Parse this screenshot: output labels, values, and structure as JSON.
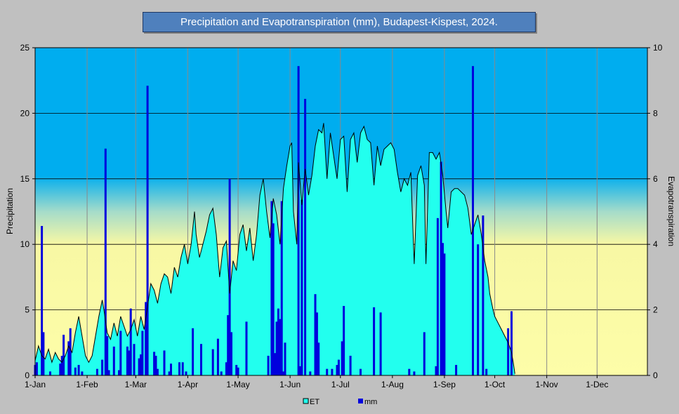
{
  "chart_data": {
    "type": "bar+area",
    "title": "Precipitation and Evapotranspiration (mm), Budapest-Kispest, 2024.",
    "ylabel_left": "Precipitation",
    "ylabel_right": "Evapotranspiration",
    "ylim_left": [
      0,
      25
    ],
    "ylim_right": [
      0,
      10
    ],
    "yticks_left": [
      "0",
      "5",
      "10",
      "15",
      "20",
      "25"
    ],
    "yticks_right": [
      "0",
      "2",
      "4",
      "6",
      "8",
      "10"
    ],
    "xlim_day": [
      1,
      366
    ],
    "xticks": [
      {
        "label": "1-Jan",
        "day": 1
      },
      {
        "label": "1-Feb",
        "day": 32
      },
      {
        "label": "1-Mar",
        "day": 61
      },
      {
        "label": "1-Apr",
        "day": 92
      },
      {
        "label": "1-May",
        "day": 122
      },
      {
        "label": "1-Jun",
        "day": 153
      },
      {
        "label": "1-Jul",
        "day": 183
      },
      {
        "label": "1-Aug",
        "day": 214
      },
      {
        "label": "1-Sep",
        "day": 245
      },
      {
        "label": "1-Oct",
        "day": 275
      },
      {
        "label": "1-Nov",
        "day": 306
      },
      {
        "label": "1-Dec",
        "day": 336
      }
    ],
    "legend": [
      "ET",
      "mm"
    ],
    "legend_position": "bottom",
    "colors": {
      "et_fill": "#22ffee",
      "precip": "#0000dd",
      "et_line": "#000000"
    },
    "et_series": {
      "name": "ET",
      "axis": "right",
      "points": [
        [
          1,
          0.45
        ],
        [
          3,
          0.9
        ],
        [
          5,
          0.6
        ],
        [
          7,
          0.5
        ],
        [
          9,
          0.8
        ],
        [
          11,
          0.4
        ],
        [
          13,
          0.7
        ],
        [
          15,
          0.5
        ],
        [
          17,
          0.4
        ],
        [
          19,
          0.6
        ],
        [
          21,
          0.9
        ],
        [
          23,
          0.7
        ],
        [
          25,
          1.3
        ],
        [
          27,
          1.8
        ],
        [
          29,
          1.2
        ],
        [
          31,
          0.6
        ],
        [
          33,
          0.4
        ],
        [
          35,
          0.6
        ],
        [
          37,
          1.2
        ],
        [
          39,
          1.8
        ],
        [
          41,
          2.3
        ],
        [
          42,
          2.0
        ],
        [
          44,
          1.3
        ],
        [
          46,
          1.1
        ],
        [
          48,
          1.6
        ],
        [
          50,
          1.2
        ],
        [
          52,
          1.8
        ],
        [
          54,
          1.5
        ],
        [
          56,
          1.2
        ],
        [
          58,
          1.4
        ],
        [
          60,
          1.7
        ],
        [
          62,
          1.2
        ],
        [
          64,
          1.8
        ],
        [
          66,
          1.4
        ],
        [
          68,
          2.1
        ],
        [
          70,
          2.8
        ],
        [
          72,
          2.6
        ],
        [
          74,
          2.2
        ],
        [
          76,
          2.8
        ],
        [
          78,
          3.1
        ],
        [
          80,
          3.0
        ],
        [
          82,
          2.5
        ],
        [
          84,
          3.3
        ],
        [
          86,
          3.0
        ],
        [
          88,
          3.6
        ],
        [
          90,
          4.0
        ],
        [
          92,
          3.4
        ],
        [
          94,
          4.0
        ],
        [
          96,
          5.0
        ],
        [
          97,
          4.3
        ],
        [
          99,
          3.6
        ],
        [
          101,
          4.0
        ],
        [
          103,
          4.4
        ],
        [
          105,
          4.9
        ],
        [
          107,
          5.1
        ],
        [
          109,
          4.3
        ],
        [
          111,
          3.0
        ],
        [
          113,
          3.9
        ],
        [
          115,
          4.1
        ],
        [
          117,
          2.5
        ],
        [
          119,
          3.5
        ],
        [
          121,
          3.2
        ],
        [
          123,
          4.3
        ],
        [
          125,
          4.6
        ],
        [
          127,
          3.8
        ],
        [
          129,
          4.5
        ],
        [
          131,
          3.5
        ],
        [
          133,
          4.3
        ],
        [
          135,
          5.5
        ],
        [
          137,
          6.0
        ],
        [
          139,
          5.0
        ],
        [
          141,
          4.2
        ],
        [
          143,
          5.4
        ],
        [
          145,
          4.9
        ],
        [
          147,
          4.0
        ],
        [
          149,
          5.7
        ],
        [
          151,
          6.4
        ],
        [
          153,
          7.0
        ],
        [
          154,
          7.1
        ],
        [
          155,
          5.0
        ],
        [
          157,
          4.0
        ],
        [
          158,
          6.5
        ],
        [
          160,
          5.2
        ],
        [
          162,
          6.3
        ],
        [
          164,
          5.5
        ],
        [
          166,
          6.1
        ],
        [
          168,
          7.0
        ],
        [
          170,
          7.5
        ],
        [
          172,
          7.4
        ],
        [
          173,
          7.7
        ],
        [
          175,
          6.0
        ],
        [
          177,
          7.4
        ],
        [
          179,
          6.7
        ],
        [
          181,
          6.0
        ],
        [
          183,
          7.2
        ],
        [
          185,
          7.3
        ],
        [
          187,
          5.6
        ],
        [
          189,
          7.2
        ],
        [
          191,
          7.4
        ],
        [
          193,
          6.5
        ],
        [
          195,
          7.4
        ],
        [
          197,
          7.6
        ],
        [
          199,
          7.2
        ],
        [
          201,
          7.1
        ],
        [
          203,
          5.8
        ],
        [
          205,
          7.0
        ],
        [
          207,
          6.4
        ],
        [
          209,
          6.9
        ],
        [
          211,
          7.0
        ],
        [
          213,
          7.1
        ],
        [
          215,
          6.9
        ],
        [
          217,
          6.2
        ],
        [
          219,
          5.6
        ],
        [
          221,
          6.0
        ],
        [
          223,
          5.8
        ],
        [
          225,
          6.2
        ],
        [
          227,
          3.4
        ],
        [
          229,
          6.1
        ],
        [
          231,
          6.4
        ],
        [
          233,
          5.8
        ],
        [
          234,
          3.4
        ],
        [
          236,
          6.8
        ],
        [
          238,
          6.8
        ],
        [
          240,
          6.6
        ],
        [
          242,
          6.8
        ],
        [
          244,
          6.1
        ],
        [
          246,
          5.0
        ],
        [
          247,
          4.5
        ],
        [
          249,
          5.6
        ],
        [
          251,
          5.7
        ],
        [
          253,
          5.7
        ],
        [
          255,
          5.6
        ],
        [
          257,
          5.5
        ],
        [
          259,
          5.1
        ],
        [
          261,
          4.3
        ],
        [
          263,
          4.6
        ],
        [
          265,
          4.9
        ],
        [
          267,
          4.3
        ],
        [
          269,
          3.5
        ],
        [
          271,
          3.0
        ],
        [
          272,
          2.5
        ],
        [
          274,
          2.0
        ],
        [
          275,
          1.8
        ],
        [
          277,
          1.6
        ],
        [
          279,
          1.4
        ],
        [
          281,
          1.2
        ],
        [
          283,
          1.0
        ],
        [
          285,
          0.7
        ],
        [
          286,
          0.4
        ],
        [
          287,
          0.05
        ]
      ]
    },
    "precip_series": {
      "name": "mm",
      "axis": "left",
      "points": [
        [
          1,
          0.8
        ],
        [
          2,
          1.0
        ],
        [
          5,
          11.4
        ],
        [
          6,
          3.3
        ],
        [
          10,
          0.3
        ],
        [
          16,
          0.9
        ],
        [
          17,
          1.5
        ],
        [
          18,
          3.1
        ],
        [
          21,
          2.6
        ],
        [
          22,
          3.6
        ],
        [
          25,
          0.6
        ],
        [
          27,
          0.8
        ],
        [
          29,
          0.3
        ],
        [
          38,
          0.5
        ],
        [
          41,
          1.2
        ],
        [
          43,
          17.3
        ],
        [
          44,
          3.0
        ],
        [
          45,
          0.4
        ],
        [
          48,
          2.2
        ],
        [
          51,
          0.4
        ],
        [
          52,
          3.4
        ],
        [
          56,
          2.2
        ],
        [
          57,
          1.9
        ],
        [
          58,
          5.1
        ],
        [
          60,
          2.4
        ],
        [
          63,
          1.3
        ],
        [
          64,
          1.6
        ],
        [
          65,
          3.4
        ],
        [
          67,
          5.6
        ],
        [
          68,
          22.1
        ],
        [
          72,
          1.8
        ],
        [
          73,
          1.5
        ],
        [
          74,
          0.5
        ],
        [
          78,
          1.9
        ],
        [
          81,
          0.3
        ],
        [
          82,
          0.9
        ],
        [
          87,
          1.0
        ],
        [
          89,
          1.0
        ],
        [
          91,
          0.3
        ],
        [
          95,
          3.6
        ],
        [
          100,
          2.4
        ],
        [
          107,
          2.0
        ],
        [
          110,
          2.8
        ],
        [
          112,
          0.3
        ],
        [
          115,
          1.0
        ],
        [
          116,
          4.6
        ],
        [
          117,
          15.0
        ],
        [
          118,
          3.3
        ],
        [
          121,
          0.8
        ],
        [
          122,
          0.6
        ],
        [
          127,
          4.1
        ],
        [
          140,
          1.5
        ],
        [
          142,
          13.3
        ],
        [
          143,
          11.6
        ],
        [
          144,
          1.7
        ],
        [
          145,
          4.1
        ],
        [
          146,
          5.1
        ],
        [
          147,
          4.3
        ],
        [
          148,
          13.3
        ],
        [
          149,
          0.3
        ],
        [
          150,
          2.5
        ],
        [
          158,
          23.6
        ],
        [
          159,
          0.7
        ],
        [
          160,
          13.4
        ],
        [
          162,
          21.1
        ],
        [
          165,
          0.3
        ],
        [
          168,
          6.2
        ],
        [
          169,
          4.8
        ],
        [
          170,
          2.5
        ],
        [
          175,
          0.5
        ],
        [
          178,
          0.5
        ],
        [
          181,
          0.8
        ],
        [
          182,
          1.2
        ],
        [
          184,
          2.6
        ],
        [
          185,
          5.3
        ],
        [
          189,
          1.5
        ],
        [
          195,
          0.5
        ],
        [
          203,
          5.2
        ],
        [
          207,
          4.8
        ],
        [
          224,
          0.5
        ],
        [
          227,
          0.3
        ],
        [
          233,
          3.3
        ],
        [
          240,
          0.7
        ],
        [
          241,
          12.0
        ],
        [
          243,
          16.3
        ],
        [
          244,
          10.1
        ],
        [
          245,
          9.3
        ],
        [
          252,
          0.8
        ],
        [
          262,
          23.6
        ],
        [
          265,
          10.0
        ],
        [
          268,
          12.2
        ],
        [
          270,
          0.5
        ],
        [
          283,
          3.6
        ],
        [
          285,
          4.9
        ]
      ]
    }
  }
}
